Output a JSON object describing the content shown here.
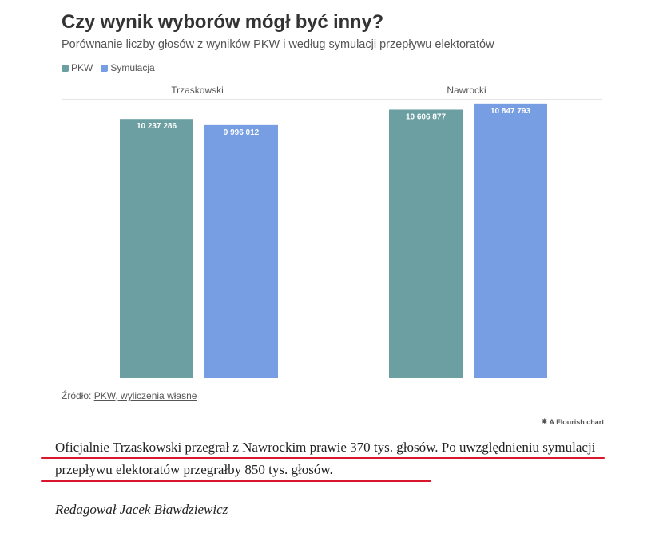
{
  "chart_data": {
    "type": "bar",
    "title": "Czy wynik wyborów mógł być inny?",
    "subtitle": "Porównanie liczby głosów z wyników PKW i według symulacji przepływu elektoratów",
    "categories": [
      "Trzaskowski",
      "Nawrocki"
    ],
    "series": [
      {
        "name": "PKW",
        "values": [
          10237286,
          10606877
        ],
        "labels": [
          "10 237 286",
          "10 606 877"
        ],
        "color": "#6b9fa2"
      },
      {
        "name": "Symulacja",
        "values": [
          9996012,
          10847793
        ],
        "labels": [
          "9 996 012",
          "10 847 793"
        ],
        "color": "#779ee3"
      }
    ],
    "ylim": [
      0,
      11000000
    ],
    "grid": false,
    "legend_position": "top-left",
    "source_prefix": "Źródło:",
    "source_link": "PKW, wyliczenia własne",
    "credit": "A Flourish chart"
  },
  "article": {
    "paragraph": "Oficjalnie Trzaskowski przegrał z Nawrockim prawie 370 tys. głosów. Po uwzględnieniu symulacji przepływu elektoratów przegrałby 850 tys. głosów.",
    "byline": "Redagował Jacek Bławdziewicz"
  },
  "colors": {
    "highlight_underline": "#d9162b"
  }
}
